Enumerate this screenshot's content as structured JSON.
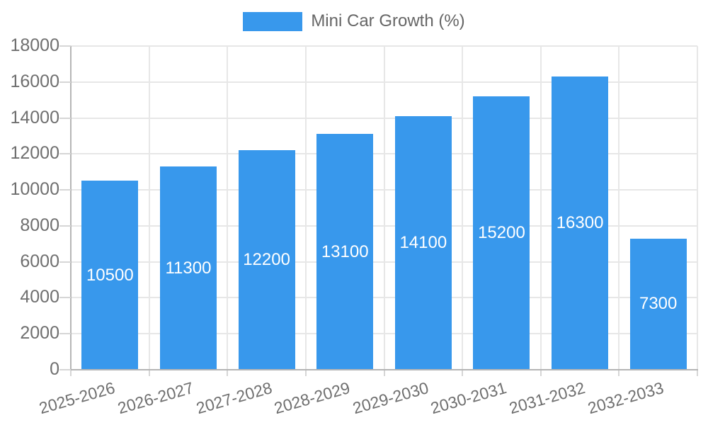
{
  "legend": {
    "label": "Mini Car Growth (%)"
  },
  "colors": {
    "bar": "#3898ec",
    "grid": "#e7e7e7",
    "axis": "#b5b5b5",
    "tick": "#d6d6d6",
    "label": "#6f6f6f",
    "legend_text": "#666666",
    "value_label": "#ffffff",
    "background": "#ffffff"
  },
  "chart_data": {
    "type": "bar",
    "title": "",
    "legend_label": "Mini Car Growth (%)",
    "legend_position": "top",
    "categories": [
      "2025-2026",
      "2026-2027",
      "2027-2028",
      "2028-2029",
      "2029-2030",
      "2030-2031",
      "2031-2032",
      "2032-2033"
    ],
    "values": [
      10500,
      11300,
      12200,
      13100,
      14100,
      15200,
      16300,
      7300
    ],
    "value_labels": [
      "10500",
      "11300",
      "12200",
      "13100",
      "14100",
      "15200",
      "16300",
      "7300"
    ],
    "value_label_position": "inside-center",
    "xlabel": "",
    "ylabel": "",
    "ylim": [
      0,
      18000
    ],
    "ytick_step": 2000,
    "yticks": [
      "0",
      "2000",
      "4000",
      "6000",
      "8000",
      "10000",
      "12000",
      "14000",
      "16000",
      "18000"
    ],
    "grid": true,
    "x_label_rotation_deg": -16
  }
}
